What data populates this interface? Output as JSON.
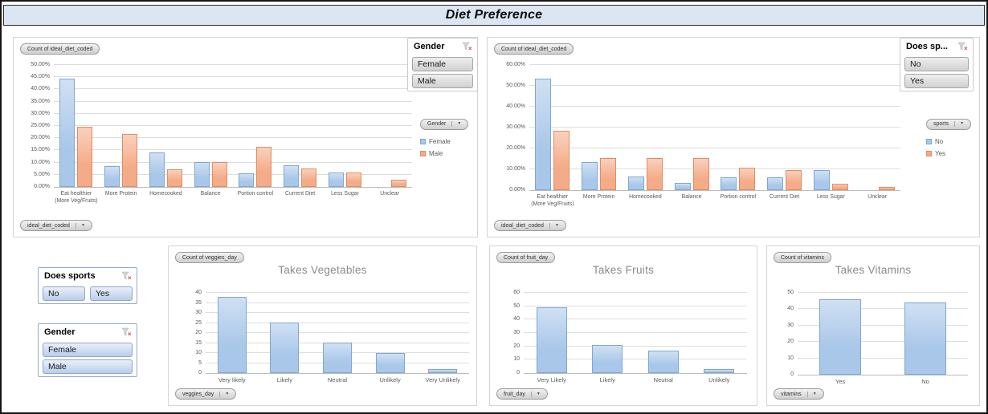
{
  "title": "Diet Preference",
  "colors": {
    "titlebar_bg": "#dce6f2",
    "bar_blue": "#a9c7e9",
    "bar_blue_border": "#7da7d4",
    "bar_orange": "#f4ab87",
    "bar_orange_border": "#e28c61"
  },
  "chart_data": {
    "gender_diet": {
      "type": "bar",
      "field_button": "Count of ideal_diet_coded",
      "axis_button": "ideal_diet_coded",
      "legend_button": "Gender",
      "categories": [
        "Eat healthier (More Veg/Fruits)",
        "More Protein",
        "Homecooked",
        "Balance",
        "Portion control",
        "Current Diet",
        "Less Sugar",
        "Unclear"
      ],
      "series": [
        {
          "name": "Female",
          "color_key": "bar_blue",
          "values": [
            44.5,
            8.5,
            14.3,
            10.3,
            5.5,
            9.0,
            5.8,
            0
          ]
        },
        {
          "name": "Male",
          "color_key": "bar_orange",
          "values": [
            24.8,
            21.8,
            7.3,
            10.3,
            16.3,
            7.5,
            5.8,
            3.0
          ]
        }
      ],
      "ylim": [
        0,
        50
      ],
      "yticks": [
        "0.00%",
        "5.00%",
        "10.00%",
        "15.00%",
        "20.00%",
        "25.00%",
        "30.00%",
        "35.00%",
        "40.00%",
        "45.00%",
        "50.00%"
      ],
      "grid": true,
      "legend_position": "right"
    },
    "sports_diet": {
      "type": "bar",
      "field_button": "Count of ideal_diet_coded",
      "axis_button": "ideal_diet_coded",
      "legend_button": "sports",
      "categories": [
        "Eat healthier (More Veg/Fruits)",
        "More Protein",
        "Homecooked",
        "Balance",
        "Portion control",
        "Current Diet",
        "Less Sugar",
        "Unclear"
      ],
      "series": [
        {
          "name": "No",
          "color_key": "bar_blue",
          "values": [
            53.3,
            13.3,
            6.7,
            3.3,
            6.3,
            6.3,
            9.7,
            0
          ]
        },
        {
          "name": "Yes",
          "color_key": "bar_orange",
          "values": [
            28.3,
            15.3,
            15.3,
            15.3,
            10.9,
            9.7,
            3.0,
            1.5
          ]
        }
      ],
      "ylim": [
        0,
        60
      ],
      "yticks": [
        "0.00%",
        "10.00%",
        "20.00%",
        "30.00%",
        "40.00%",
        "50.00%",
        "60.00%"
      ],
      "grid": true,
      "legend_position": "right"
    },
    "veggies": {
      "type": "bar",
      "title": "Takes Vegetables",
      "field_button": "Count of veggies_day",
      "axis_button": "veggies_day",
      "categories": [
        "Very likely",
        "Likely",
        "Neutral",
        "Unlikely",
        "Very Unlikely"
      ],
      "values": [
        38,
        25,
        15,
        10,
        2
      ],
      "ylim": [
        0,
        40
      ],
      "yticks": [
        "0",
        "5",
        "10",
        "15",
        "20",
        "25",
        "30",
        "35",
        "40"
      ],
      "grid": true
    },
    "fruits": {
      "type": "bar",
      "title": "Takes Fruits",
      "field_button": "Count of fruit_day",
      "axis_button": "fruit_day",
      "categories": [
        "Very Likely",
        "Likely",
        "Neutral",
        "Unlikely"
      ],
      "values": [
        49,
        21,
        17,
        3
      ],
      "ylim": [
        0,
        60
      ],
      "yticks": [
        "0",
        "10",
        "20",
        "30",
        "40",
        "50",
        "60"
      ],
      "grid": true
    },
    "vitamins": {
      "type": "bar",
      "title": "Takes Vitamins",
      "field_button": "Count of vitamins",
      "axis_button": "vitamins",
      "categories": [
        "Yes",
        "No"
      ],
      "values": [
        46,
        44
      ],
      "ylim": [
        0,
        50
      ],
      "yticks": [
        "0",
        "10",
        "20",
        "30",
        "40",
        "50"
      ],
      "grid": true
    }
  },
  "slicers": {
    "gender_chart": {
      "title": "Gender",
      "items": [
        "Female",
        "Male"
      ]
    },
    "sports_chart": {
      "title": "Does sp...",
      "items": [
        "No",
        "Yes"
      ]
    },
    "sports_main": {
      "title": "Does sports",
      "items": [
        "No",
        "Yes"
      ]
    },
    "gender_main": {
      "title": "Gender",
      "items": [
        "Female",
        "Male"
      ]
    }
  }
}
